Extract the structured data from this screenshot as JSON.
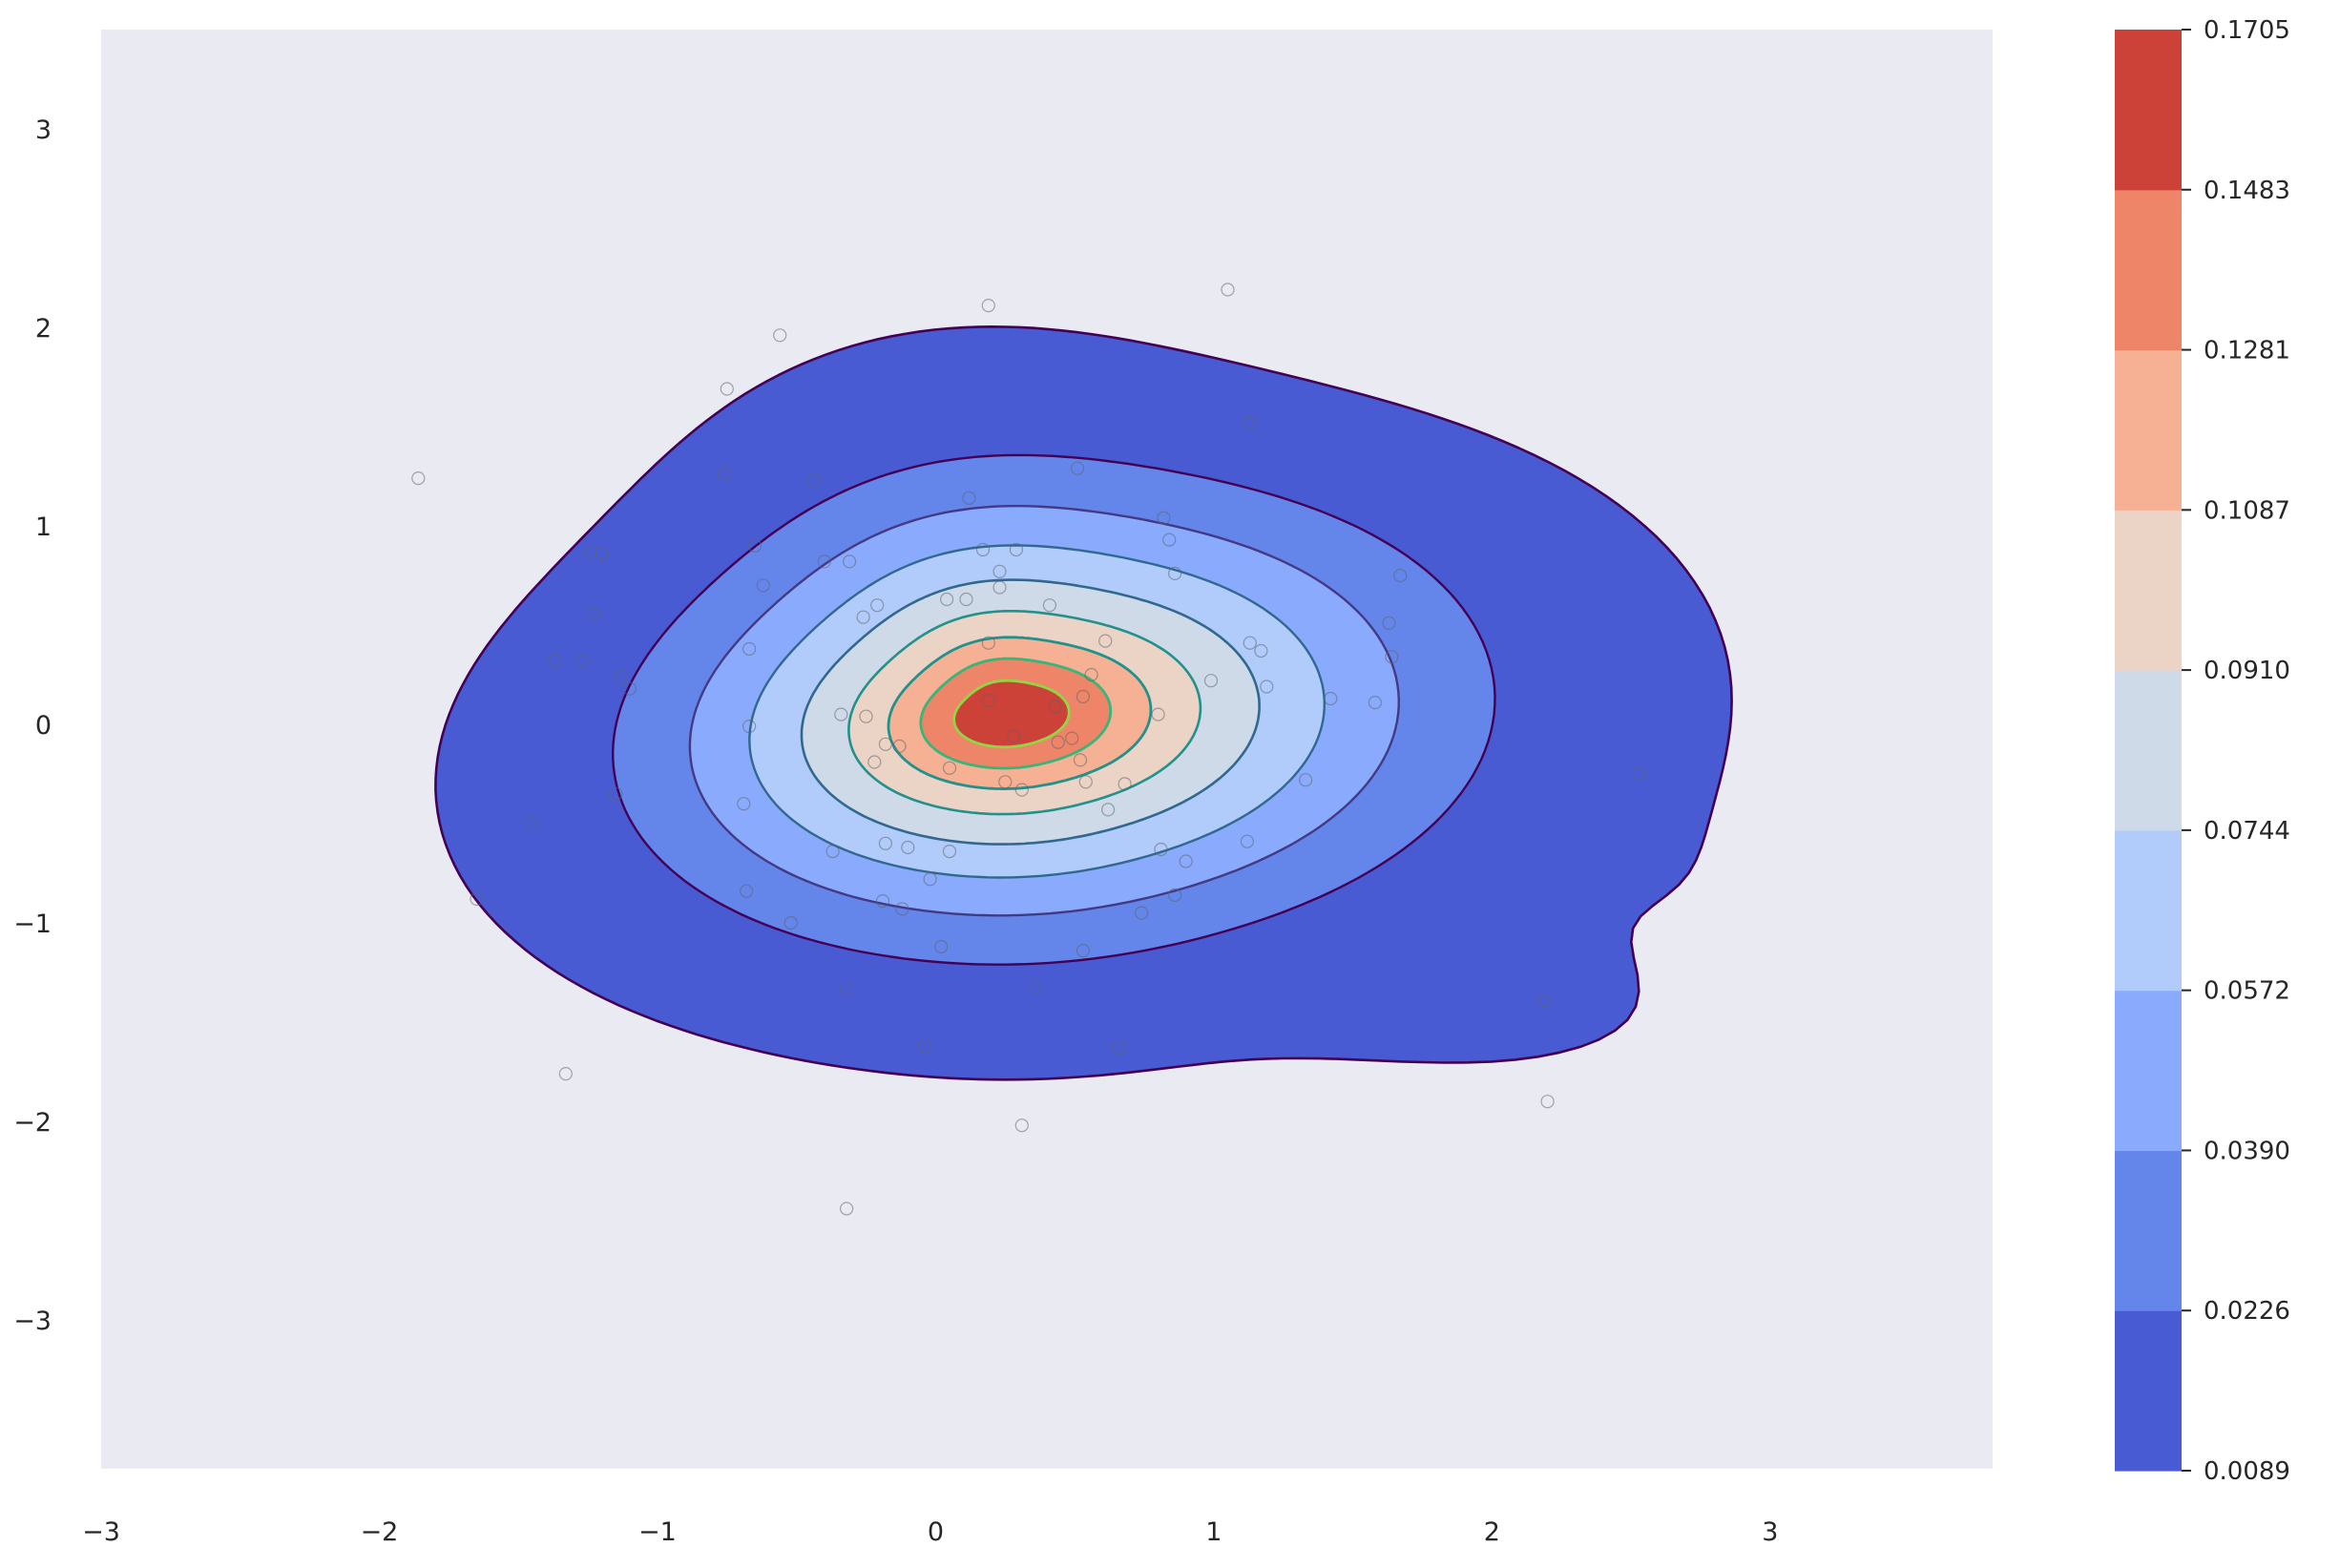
{
  "chart_data": {
    "type": "contour",
    "title": "",
    "xlabel": "",
    "ylabel": "",
    "xlim": [
      -3.0,
      3.8
    ],
    "ylim": [
      -3.75,
      3.5
    ],
    "grid": false,
    "x_ticks": [
      "−3",
      "−2",
      "−1",
      "0",
      "1",
      "2",
      "3"
    ],
    "x_tick_values": [
      -3,
      -2,
      -1,
      0,
      1,
      2,
      3
    ],
    "y_ticks": [
      "−3",
      "−2",
      "−1",
      "0",
      "1",
      "2",
      "3"
    ],
    "y_tick_values": [
      -3,
      -2,
      -1,
      0,
      1,
      2,
      3
    ],
    "colorbar": {
      "ticks": [
        "0.0089",
        "0.0226",
        "0.0390",
        "0.0572",
        "0.0744",
        "0.0910",
        "0.1087",
        "0.1281",
        "0.1483",
        "0.1705"
      ],
      "band_colors": [
        "#485bd3",
        "#6486eb",
        "#8aabfd",
        "#b1cbfb",
        "#cfdae9",
        "#ebd3c6",
        "#f6b094",
        "#ee8568",
        "#cc4138"
      ],
      "line_colors": [
        "#440154",
        "#443983",
        "#31688e",
        "#21918c",
        "#35b779",
        "#90d743",
        "#fde725"
      ]
    },
    "kde_center": [
      0.25,
      0.05
    ],
    "contour_levels": [
      0.0089,
      0.0226,
      0.039,
      0.0572,
      0.0744,
      0.091,
      0.1087,
      0.1281,
      0.1483,
      0.1705
    ],
    "points": [
      [
        0.19,
        2.11
      ],
      [
        1.05,
        2.19
      ],
      [
        -0.56,
        1.96
      ],
      [
        -0.75,
        1.69
      ],
      [
        1.13,
        1.52
      ],
      [
        -1.86,
        1.24
      ],
      [
        -0.76,
        1.26
      ],
      [
        -0.44,
        1.23
      ],
      [
        0.51,
        1.29
      ],
      [
        0.12,
        1.14
      ],
      [
        0.82,
        1.04
      ],
      [
        0.84,
        0.93
      ],
      [
        -1.24,
        0.87
      ],
      [
        -1.2,
        0.86
      ],
      [
        -0.65,
        0.9
      ],
      [
        -0.4,
        0.82
      ],
      [
        -0.31,
        0.82
      ],
      [
        0.17,
        0.88
      ],
      [
        0.29,
        0.88
      ],
      [
        0.86,
        0.76
      ],
      [
        1.67,
        0.75
      ],
      [
        0.23,
        0.77
      ],
      [
        -0.62,
        0.7
      ],
      [
        0.23,
        0.69
      ],
      [
        -0.26,
        0.54
      ],
      [
        -0.21,
        0.6
      ],
      [
        0.04,
        0.63
      ],
      [
        0.11,
        0.63
      ],
      [
        0.41,
        0.6
      ],
      [
        -1.23,
        0.56
      ],
      [
        1.63,
        0.51
      ],
      [
        1.13,
        0.41
      ],
      [
        1.17,
        0.37
      ],
      [
        0.19,
        0.41
      ],
      [
        0.61,
        0.42
      ],
      [
        -0.67,
        0.38
      ],
      [
        -1.37,
        0.32
      ],
      [
        -1.27,
        0.32
      ],
      [
        1.64,
        0.34
      ],
      [
        -1.13,
        0.24
      ],
      [
        -1.1,
        0.18
      ],
      [
        0.56,
        0.25
      ],
      [
        0.99,
        0.22
      ],
      [
        1.19,
        0.19
      ],
      [
        0.53,
        0.14
      ],
      [
        1.42,
        0.13
      ],
      [
        1.58,
        0.11
      ],
      [
        0.19,
        0.12
      ],
      [
        0.43,
        0.09
      ],
      [
        -0.34,
        0.05
      ],
      [
        -0.25,
        0.04
      ],
      [
        0.8,
        0.05
      ],
      [
        -0.67,
        -0.01
      ],
      [
        0.28,
        -0.06
      ],
      [
        0.49,
        -0.07
      ],
      [
        -0.18,
        -0.1
      ],
      [
        -0.13,
        -0.11
      ],
      [
        0.44,
        -0.09
      ],
      [
        -0.22,
        -0.19
      ],
      [
        0.52,
        -0.18
      ],
      [
        0.05,
        -0.22
      ],
      [
        2.53,
        -0.25
      ],
      [
        0.25,
        -0.29
      ],
      [
        0.31,
        -0.33
      ],
      [
        0.54,
        -0.29
      ],
      [
        0.68,
        -0.3
      ],
      [
        1.33,
        -0.28
      ],
      [
        -1.15,
        -0.35
      ],
      [
        -0.69,
        -0.4
      ],
      [
        0.62,
        -0.43
      ],
      [
        -1.45,
        -0.5
      ],
      [
        1.12,
        -0.59
      ],
      [
        -0.18,
        -0.6
      ],
      [
        -0.1,
        -0.62
      ],
      [
        0.05,
        -0.64
      ],
      [
        -0.37,
        -0.64
      ],
      [
        0.81,
        -0.63
      ],
      [
        0.9,
        -0.69
      ],
      [
        -0.02,
        -0.78
      ],
      [
        -1.65,
        -0.88
      ],
      [
        -0.68,
        -0.84
      ],
      [
        -0.19,
        -0.89
      ],
      [
        0.86,
        -0.86
      ],
      [
        -0.12,
        -0.93
      ],
      [
        0.74,
        -0.95
      ],
      [
        -0.52,
        -1.0
      ],
      [
        0.02,
        -1.12
      ],
      [
        0.53,
        -1.14
      ],
      [
        -0.32,
        -1.34
      ],
      [
        0.36,
        -1.32
      ],
      [
        2.19,
        -1.39
      ],
      [
        -0.04,
        -1.62
      ],
      [
        0.66,
        -1.63
      ],
      [
        -1.33,
        -1.76
      ],
      [
        2.2,
        -1.9
      ],
      [
        0.31,
        -2.02
      ],
      [
        -0.32,
        -2.44
      ]
    ]
  }
}
